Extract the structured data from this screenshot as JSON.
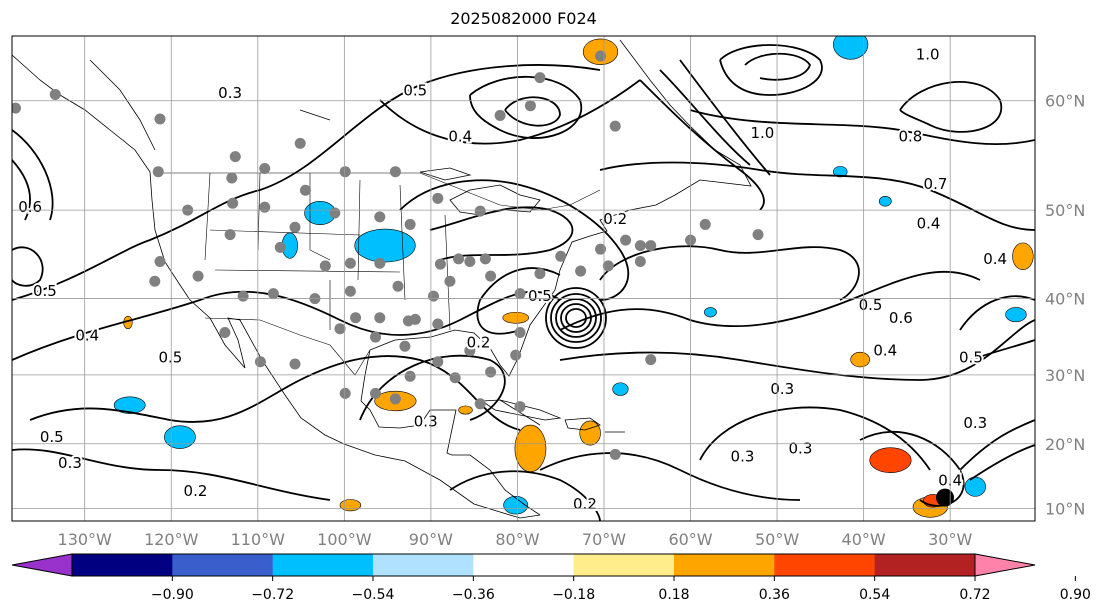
{
  "title": "2025082000 F024",
  "map": {
    "projection": "mercator",
    "lon_range": [
      -138.4,
      -20.2
    ],
    "lat_range": [
      8.0,
      64.8
    ],
    "lon_ticks": [
      {
        "lon": -130,
        "label": "130°W"
      },
      {
        "lon": -120,
        "label": "120°W"
      },
      {
        "lon": -110,
        "label": "110°W"
      },
      {
        "lon": -100,
        "label": "100°W"
      },
      {
        "lon": -90,
        "label": "90°W"
      },
      {
        "lon": -80,
        "label": "80°W"
      },
      {
        "lon": -70,
        "label": "70°W"
      },
      {
        "lon": -60,
        "label": "60°W"
      },
      {
        "lon": -50,
        "label": "50°W"
      },
      {
        "lon": -40,
        "label": "40°W"
      },
      {
        "lon": -30,
        "label": "30°W"
      }
    ],
    "lat_ticks": [
      {
        "lat": 60,
        "label": "60°N"
      },
      {
        "lat": 50,
        "label": "50°N"
      },
      {
        "lat": 40,
        "label": "40°N"
      },
      {
        "lat": 30,
        "label": "30°N"
      },
      {
        "lat": 20,
        "label": "20°N"
      },
      {
        "lat": 10,
        "label": "10°N"
      }
    ],
    "contour_labels": [
      {
        "text": "0.3",
        "lon": -113.2,
        "lat": 60.6
      },
      {
        "text": "0.4",
        "lon": -86.6,
        "lat": 57.0
      },
      {
        "text": "0.5",
        "lon": -91.8,
        "lat": 60.8
      },
      {
        "text": "0.2",
        "lon": -68.7,
        "lat": 49.1
      },
      {
        "text": "0.5",
        "lon": -120.1,
        "lat": 32.4
      },
      {
        "text": "0.4",
        "lon": -129.7,
        "lat": 35.3
      },
      {
        "text": "0.5",
        "lon": -133.8,
        "lat": 21.0
      },
      {
        "text": "0.3",
        "lon": -131.7,
        "lat": 17.1
      },
      {
        "text": "0.2",
        "lon": -117.2,
        "lat": 12.7
      },
      {
        "text": "0.3",
        "lon": -90.6,
        "lat": 23.3
      },
      {
        "text": "0.2",
        "lon": -84.5,
        "lat": 34.4
      },
      {
        "text": "0.3",
        "lon": -49.4,
        "lat": 28.0
      },
      {
        "text": "0.3",
        "lon": -47.3,
        "lat": 19.3
      },
      {
        "text": "0.3",
        "lon": -54.0,
        "lat": 18.1
      },
      {
        "text": "0.3",
        "lon": -27.1,
        "lat": 23.1
      },
      {
        "text": "1.0",
        "lon": -51.7,
        "lat": 57.3
      },
      {
        "text": "1.0",
        "lon": -32.6,
        "lat": 63.5
      },
      {
        "text": "0.8",
        "lon": -34.6,
        "lat": 57.0
      },
      {
        "text": "0.7",
        "lon": -31.7,
        "lat": 52.6
      },
      {
        "text": "0.4",
        "lon": -32.5,
        "lat": 48.6
      },
      {
        "text": "0.4",
        "lon": -24.8,
        "lat": 44.7
      },
      {
        "text": "0.5",
        "lon": -39.2,
        "lat": 39.2
      },
      {
        "text": "0.6",
        "lon": -35.7,
        "lat": 37.6
      },
      {
        "text": "0.4",
        "lon": -37.5,
        "lat": 33.3
      },
      {
        "text": "0.5",
        "lon": -27.6,
        "lat": 32.4
      },
      {
        "text": "0.2",
        "lon": -72.2,
        "lat": 10.7
      },
      {
        "text": "0.5",
        "lon": -134.6,
        "lat": 40.9
      },
      {
        "text": "0.6",
        "lon": -136.3,
        "lat": 50.3
      },
      {
        "text": "0.5",
        "lon": -77.4,
        "lat": 40.3
      },
      {
        "text": "0.4",
        "lon": -30.0,
        "lat": 14.4
      }
    ],
    "stations": [
      [
        -138.0,
        59.4
      ],
      [
        -133.4,
        60.5
      ],
      [
        -121.3,
        58.5
      ],
      [
        -121.5,
        53.8
      ],
      [
        -112.6,
        55.2
      ],
      [
        -109.2,
        54.1
      ],
      [
        -113.0,
        53.2
      ],
      [
        -105.1,
        56.4
      ],
      [
        -99.9,
        53.8
      ],
      [
        -94.1,
        53.8
      ],
      [
        -89.2,
        51.2
      ],
      [
        -118.1,
        50.0
      ],
      [
        -112.9,
        50.7
      ],
      [
        -109.2,
        50.3
      ],
      [
        -104.5,
        52.0
      ],
      [
        -101.1,
        49.7
      ],
      [
        -95.9,
        49.3
      ],
      [
        -92.4,
        48.5
      ],
      [
        -105.7,
        48.2
      ],
      [
        -107.4,
        46.0
      ],
      [
        -113.2,
        47.4
      ],
      [
        -121.3,
        44.4
      ],
      [
        -121.9,
        42.1
      ],
      [
        -116.9,
        42.7
      ],
      [
        -111.7,
        40.3
      ],
      [
        -108.2,
        40.6
      ],
      [
        -103.4,
        40.0
      ],
      [
        -102.2,
        43.9
      ],
      [
        -99.3,
        40.9
      ],
      [
        -99.3,
        44.2
      ],
      [
        -95.9,
        44.2
      ],
      [
        -93.8,
        41.5
      ],
      [
        -91.8,
        37.4
      ],
      [
        -89.7,
        40.3
      ],
      [
        -88.9,
        44.1
      ],
      [
        -87.8,
        42.1
      ],
      [
        -85.5,
        44.4
      ],
      [
        -83.7,
        44.7
      ],
      [
        -83.1,
        42.7
      ],
      [
        -79.7,
        40.6
      ],
      [
        -77.4,
        43.0
      ],
      [
        -75.0,
        45.0
      ],
      [
        -72.7,
        43.3
      ],
      [
        -69.5,
        43.9
      ],
      [
        -65.8,
        44.4
      ],
      [
        -64.6,
        46.2
      ],
      [
        -67.5,
        46.8
      ],
      [
        -70.4,
        45.8
      ],
      [
        -68.7,
        57.9
      ],
      [
        -70.4,
        63.4
      ],
      [
        -113.8,
        35.7
      ],
      [
        -109.7,
        31.8
      ],
      [
        -105.7,
        31.5
      ],
      [
        -100.5,
        36.2
      ],
      [
        -98.7,
        37.6
      ],
      [
        -96.4,
        35.1
      ],
      [
        -95.9,
        37.6
      ],
      [
        -92.6,
        37.2
      ],
      [
        -93.0,
        33.9
      ],
      [
        -89.2,
        31.8
      ],
      [
        -85.5,
        33.3
      ],
      [
        -83.1,
        30.4
      ],
      [
        -80.2,
        32.7
      ],
      [
        -79.7,
        35.7
      ],
      [
        -89.2,
        36.8
      ],
      [
        -99.9,
        27.4
      ],
      [
        -96.4,
        27.4
      ],
      [
        -94.1,
        26.6
      ],
      [
        -84.3,
        25.9
      ],
      [
        -79.7,
        25.5
      ],
      [
        -87.2,
        29.6
      ],
      [
        -92.4,
        29.8
      ],
      [
        -64.6,
        32.1
      ],
      [
        -68.7,
        18.4
      ],
      [
        -52.2,
        47.4
      ],
      [
        -58.3,
        48.5
      ],
      [
        -60.0,
        46.8
      ],
      [
        -65.8,
        46.2
      ],
      [
        -82.0,
        58.8
      ],
      [
        -84.3,
        49.9
      ],
      [
        -86.8,
        44.7
      ],
      [
        -77.4,
        61.8
      ],
      [
        -78.5,
        59.6
      ]
    ],
    "shading": [
      {
        "lon": -95.3,
        "lat": 46.2,
        "rlon": 3.5,
        "rlat": 1.8,
        "cls": 3
      },
      {
        "lon": -102.8,
        "lat": 49.7,
        "rlon": 1.8,
        "rlat": 1.2,
        "cls": 3
      },
      {
        "lon": -106.3,
        "lat": 46.2,
        "rlon": 0.9,
        "rlat": 1.4,
        "cls": 3
      },
      {
        "lon": -119.0,
        "lat": 21.0,
        "rlon": 1.8,
        "rlat": 1.7,
        "cls": 3
      },
      {
        "lon": -124.8,
        "lat": 25.7,
        "rlon": 1.8,
        "rlat": 1.2,
        "cls": 3
      },
      {
        "lon": -41.5,
        "lat": 64.2,
        "rlon": 2.0,
        "rlat": 1.0,
        "cls": 3
      },
      {
        "lon": -80.2,
        "lat": 10.5,
        "rlon": 1.4,
        "rlat": 1.4,
        "cls": 3
      },
      {
        "lon": -68.1,
        "lat": 28.0,
        "rlon": 0.9,
        "rlat": 0.9,
        "cls": 3
      },
      {
        "lon": -22.4,
        "lat": 38.0,
        "rlon": 1.2,
        "rlat": 0.9,
        "cls": 3
      },
      {
        "lon": -57.7,
        "lat": 38.3,
        "rlon": 0.7,
        "rlat": 0.6,
        "cls": 3
      },
      {
        "lon": -37.5,
        "lat": 50.9,
        "rlon": 0.7,
        "rlat": 0.5,
        "cls": 3
      },
      {
        "lon": -42.7,
        "lat": 53.8,
        "rlon": 0.8,
        "rlat": 0.5,
        "cls": 3
      },
      {
        "lon": -27.1,
        "lat": 13.4,
        "rlon": 1.2,
        "rlat": 1.5,
        "cls": 3
      },
      {
        "lon": -70.4,
        "lat": 63.7,
        "rlon": 2.0,
        "rlat": 0.9,
        "cls": 7
      },
      {
        "lon": -94.1,
        "lat": 26.3,
        "rlon": 2.4,
        "rlat": 1.4,
        "cls": 7
      },
      {
        "lon": -78.5,
        "lat": 19.3,
        "rlon": 1.8,
        "rlat": 3.5,
        "cls": 7
      },
      {
        "lon": -71.6,
        "lat": 21.6,
        "rlon": 1.2,
        "rlat": 1.8,
        "cls": 7
      },
      {
        "lon": -99.3,
        "lat": 10.5,
        "rlon": 1.2,
        "rlat": 0.9,
        "cls": 7
      },
      {
        "lon": -21.6,
        "lat": 45.0,
        "rlon": 1.2,
        "rlat": 1.5,
        "cls": 7
      },
      {
        "lon": -40.4,
        "lat": 32.1,
        "rlon": 1.1,
        "rlat": 1.0,
        "cls": 7
      },
      {
        "lon": -80.2,
        "lat": 37.6,
        "rlon": 1.5,
        "rlat": 0.7,
        "cls": 7
      },
      {
        "lon": -32.3,
        "lat": 10.2,
        "rlon": 2.0,
        "rlat": 1.6,
        "cls": 7
      },
      {
        "lon": -36.9,
        "lat": 17.5,
        "rlon": 2.4,
        "rlat": 1.9,
        "cls": 8
      },
      {
        "lon": -32.0,
        "lat": 11.2,
        "rlon": 1.1,
        "rlat": 1.0,
        "cls": 8
      },
      {
        "lon": -86.0,
        "lat": 25.0,
        "rlon": 0.8,
        "rlat": 0.6,
        "cls": 7
      },
      {
        "lon": -125.0,
        "lat": 37.0,
        "rlon": 0.5,
        "rlat": 0.8,
        "cls": 7
      }
    ],
    "storm_center": {
      "lon": -30.6,
      "lat": 11.7
    }
  },
  "colorbar": {
    "colors": [
      "#9932CC",
      "#000080",
      "#3A5FCD",
      "#00BFFF",
      "#B0E2FF",
      "#FFFFFF",
      "#FFEC8B",
      "#FFA500",
      "#FF4500",
      "#B22222",
      "#FF82AB"
    ],
    "tick_labels": [
      "−0.90",
      "−0.72",
      "−0.54",
      "−0.36",
      "−0.18",
      "0.18",
      "0.36",
      "0.54",
      "0.72",
      "0.90"
    ]
  }
}
